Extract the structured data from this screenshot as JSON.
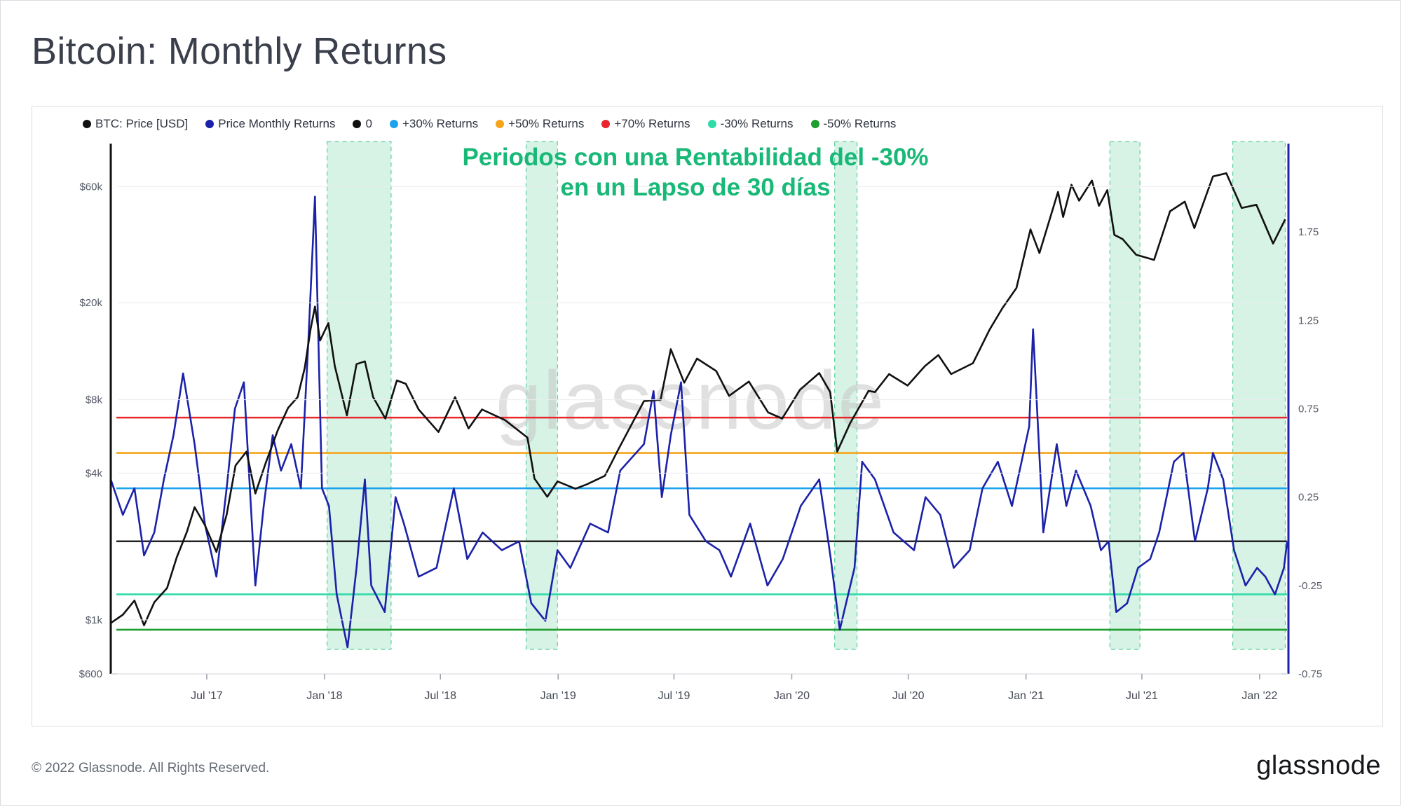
{
  "title": "Bitcoin: Monthly Returns",
  "footer": {
    "copyright": "© 2022 Glassnode. All Rights Reserved.",
    "logo": "glassnode"
  },
  "watermark": "glassnode",
  "annotation": {
    "line1": "Periodos con una Rentabilidad del -30%",
    "line2": "en un Lapso de 30 días",
    "color": "#18b877"
  },
  "legend": [
    {
      "label": "BTC: Price [USD]",
      "color": "#111111"
    },
    {
      "label": "Price Monthly Returns",
      "color": "#1c22a8"
    },
    {
      "label": "0",
      "color": "#111111"
    },
    {
      "label": "+30% Returns",
      "color": "#1ba3ee"
    },
    {
      "label": "+50% Returns",
      "color": "#f4a51b"
    },
    {
      "label": "+70% Returns",
      "color": "#e8262b"
    },
    {
      "label": "-30% Returns",
      "color": "#30dba9"
    },
    {
      "label": "-50% Returns",
      "color": "#1f9d2e"
    }
  ],
  "chart_data": {
    "type": "line",
    "x_tick_labels": [
      "Jul '17",
      "Jan '18",
      "Jul '18",
      "Jan '19",
      "Jul '19",
      "Jan '20",
      "Jul '20",
      "Jan '21",
      "Jul '21",
      "Jan '22"
    ],
    "x_tick_dates": [
      "2017-07-01",
      "2018-01-01",
      "2018-07-01",
      "2019-01-01",
      "2019-07-01",
      "2020-01-01",
      "2020-07-01",
      "2021-01-01",
      "2021-07-01",
      "2022-01-01"
    ],
    "x_range": [
      "2017-02-01",
      "2022-02-15"
    ],
    "y_left": {
      "scale": "log",
      "range": [
        600,
        90000
      ],
      "tick_labels": [
        "$600",
        "$1k",
        "$4k",
        "$8k",
        "$20k",
        "$60k"
      ],
      "tick_values": [
        600,
        1000,
        4000,
        8000,
        20000,
        60000
      ]
    },
    "y_right": {
      "scale": "linear",
      "range": [
        -0.75,
        2.25
      ],
      "tick_labels": [
        "-0.75",
        "-0.25",
        "0.25",
        "0.75",
        "1.25",
        "1.75"
      ],
      "tick_values": [
        -0.75,
        -0.25,
        0.25,
        0.75,
        1.25,
        1.75
      ]
    },
    "reference_lines": [
      {
        "name": "0",
        "value": 0.0,
        "color": "#222222"
      },
      {
        "name": "+30% Returns",
        "value": 0.3,
        "color": "#1ba3ee"
      },
      {
        "name": "+50% Returns",
        "value": 0.5,
        "color": "#f4a51b"
      },
      {
        "name": "+70% Returns",
        "value": 0.7,
        "color": "#e8262b"
      },
      {
        "name": "-30% Returns",
        "value": -0.3,
        "color": "#30dba9"
      },
      {
        "name": "-50% Returns",
        "value": -0.5,
        "color": "#1f9d2e"
      }
    ],
    "highlight_periods": [
      [
        "2018-01-05",
        "2018-04-15"
      ],
      [
        "2018-11-12",
        "2018-12-31"
      ],
      [
        "2020-03-08",
        "2020-04-12"
      ],
      [
        "2021-05-12",
        "2021-06-28"
      ],
      [
        "2021-11-20",
        "2022-02-10"
      ]
    ],
    "series": [
      {
        "name": "BTC: Price [USD]",
        "axis": "left",
        "color": "#111111",
        "points": [
          [
            "2017-02-01",
            970
          ],
          [
            "2017-02-20",
            1050
          ],
          [
            "2017-03-10",
            1200
          ],
          [
            "2017-03-25",
            950
          ],
          [
            "2017-04-10",
            1180
          ],
          [
            "2017-04-30",
            1350
          ],
          [
            "2017-05-15",
            1800
          ],
          [
            "2017-05-31",
            2300
          ],
          [
            "2017-06-12",
            2900
          ],
          [
            "2017-06-28",
            2450
          ],
          [
            "2017-07-16",
            1900
          ],
          [
            "2017-08-01",
            2700
          ],
          [
            "2017-08-15",
            4300
          ],
          [
            "2017-09-01",
            4900
          ],
          [
            "2017-09-15",
            3300
          ],
          [
            "2017-10-01",
            4400
          ],
          [
            "2017-10-20",
            6000
          ],
          [
            "2017-11-05",
            7400
          ],
          [
            "2017-11-20",
            8200
          ],
          [
            "2017-12-01",
            10800
          ],
          [
            "2017-12-10",
            15500
          ],
          [
            "2017-12-17",
            19300
          ],
          [
            "2017-12-25",
            14000
          ],
          [
            "2018-01-07",
            16500
          ],
          [
            "2018-01-17",
            11000
          ],
          [
            "2018-02-05",
            6900
          ],
          [
            "2018-02-20",
            11200
          ],
          [
            "2018-03-05",
            11500
          ],
          [
            "2018-03-18",
            8200
          ],
          [
            "2018-04-06",
            6700
          ],
          [
            "2018-04-24",
            9600
          ],
          [
            "2018-05-08",
            9300
          ],
          [
            "2018-05-28",
            7300
          ],
          [
            "2018-06-28",
            5900
          ],
          [
            "2018-07-24",
            8200
          ],
          [
            "2018-08-14",
            6100
          ],
          [
            "2018-09-04",
            7300
          ],
          [
            "2018-10-10",
            6600
          ],
          [
            "2018-11-14",
            5600
          ],
          [
            "2018-11-25",
            3800
          ],
          [
            "2018-12-15",
            3200
          ],
          [
            "2018-12-31",
            3700
          ],
          [
            "2019-01-28",
            3450
          ],
          [
            "2019-02-15",
            3600
          ],
          [
            "2019-03-15",
            3900
          ],
          [
            "2019-04-05",
            5000
          ],
          [
            "2019-05-15",
            7900
          ],
          [
            "2019-06-10",
            8000
          ],
          [
            "2019-06-26",
            12900
          ],
          [
            "2019-07-17",
            9400
          ],
          [
            "2019-08-06",
            11800
          ],
          [
            "2019-09-05",
            10500
          ],
          [
            "2019-09-25",
            8300
          ],
          [
            "2019-10-26",
            9500
          ],
          [
            "2019-11-25",
            7100
          ],
          [
            "2019-12-17",
            6700
          ],
          [
            "2020-01-14",
            8800
          ],
          [
            "2020-02-13",
            10300
          ],
          [
            "2020-03-01",
            8600
          ],
          [
            "2020-03-12",
            4900
          ],
          [
            "2020-04-01",
            6400
          ],
          [
            "2020-04-30",
            8700
          ],
          [
            "2020-05-10",
            8600
          ],
          [
            "2020-06-01",
            10200
          ],
          [
            "2020-06-30",
            9150
          ],
          [
            "2020-07-27",
            11000
          ],
          [
            "2020-08-17",
            12200
          ],
          [
            "2020-09-06",
            10200
          ],
          [
            "2020-10-10",
            11300
          ],
          [
            "2020-11-05",
            15500
          ],
          [
            "2020-11-25",
            19000
          ],
          [
            "2020-12-17",
            23000
          ],
          [
            "2021-01-08",
            40000
          ],
          [
            "2021-01-22",
            32000
          ],
          [
            "2021-02-20",
            57000
          ],
          [
            "2021-02-28",
            45000
          ],
          [
            "2021-03-13",
            61000
          ],
          [
            "2021-03-25",
            52500
          ],
          [
            "2021-04-14",
            63500
          ],
          [
            "2021-04-25",
            50000
          ],
          [
            "2021-05-08",
            58000
          ],
          [
            "2021-05-19",
            38000
          ],
          [
            "2021-06-01",
            36500
          ],
          [
            "2021-06-22",
            31500
          ],
          [
            "2021-07-20",
            30000
          ],
          [
            "2021-08-14",
            47500
          ],
          [
            "2021-09-06",
            52000
          ],
          [
            "2021-09-21",
            40500
          ],
          [
            "2021-10-20",
            66000
          ],
          [
            "2021-11-10",
            68000
          ],
          [
            "2021-12-04",
            49000
          ],
          [
            "2021-12-27",
            50500
          ],
          [
            "2022-01-22",
            35000
          ],
          [
            "2022-02-10",
            44000
          ]
        ]
      },
      {
        "name": "Price Monthly Returns",
        "axis": "right",
        "color": "#1c22a8",
        "points": [
          [
            "2017-02-01",
            0.35
          ],
          [
            "2017-02-20",
            0.15
          ],
          [
            "2017-03-10",
            0.3
          ],
          [
            "2017-03-25",
            -0.08
          ],
          [
            "2017-04-10",
            0.05
          ],
          [
            "2017-04-25",
            0.35
          ],
          [
            "2017-05-10",
            0.6
          ],
          [
            "2017-05-25",
            0.95
          ],
          [
            "2017-06-12",
            0.55
          ],
          [
            "2017-06-28",
            0.1
          ],
          [
            "2017-07-16",
            -0.2
          ],
          [
            "2017-08-01",
            0.3
          ],
          [
            "2017-08-14",
            0.75
          ],
          [
            "2017-08-28",
            0.9
          ],
          [
            "2017-09-15",
            -0.25
          ],
          [
            "2017-09-28",
            0.2
          ],
          [
            "2017-10-12",
            0.6
          ],
          [
            "2017-10-25",
            0.4
          ],
          [
            "2017-11-10",
            0.55
          ],
          [
            "2017-11-25",
            0.3
          ],
          [
            "2017-12-07",
            1.15
          ],
          [
            "2017-12-17",
            1.95
          ],
          [
            "2017-12-28",
            0.3
          ],
          [
            "2018-01-08",
            0.2
          ],
          [
            "2018-01-20",
            -0.3
          ],
          [
            "2018-02-06",
            -0.6
          ],
          [
            "2018-02-20",
            -0.15
          ],
          [
            "2018-03-05",
            0.35
          ],
          [
            "2018-03-15",
            -0.25
          ],
          [
            "2018-04-05",
            -0.4
          ],
          [
            "2018-04-22",
            0.25
          ],
          [
            "2018-05-05",
            0.1
          ],
          [
            "2018-05-28",
            -0.2
          ],
          [
            "2018-06-25",
            -0.15
          ],
          [
            "2018-07-22",
            0.3
          ],
          [
            "2018-08-12",
            -0.1
          ],
          [
            "2018-09-05",
            0.05
          ],
          [
            "2018-10-05",
            -0.05
          ],
          [
            "2018-11-01",
            0.0
          ],
          [
            "2018-11-20",
            -0.35
          ],
          [
            "2018-12-12",
            -0.45
          ],
          [
            "2018-12-31",
            -0.05
          ],
          [
            "2019-01-20",
            -0.15
          ],
          [
            "2019-02-20",
            0.1
          ],
          [
            "2019-03-20",
            0.05
          ],
          [
            "2019-04-08",
            0.4
          ],
          [
            "2019-05-15",
            0.55
          ],
          [
            "2019-05-30",
            0.85
          ],
          [
            "2019-06-12",
            0.25
          ],
          [
            "2019-06-26",
            0.6
          ],
          [
            "2019-07-12",
            0.9
          ],
          [
            "2019-07-25",
            0.15
          ],
          [
            "2019-08-20",
            0.0
          ],
          [
            "2019-09-10",
            -0.05
          ],
          [
            "2019-09-28",
            -0.2
          ],
          [
            "2019-10-28",
            0.1
          ],
          [
            "2019-11-24",
            -0.25
          ],
          [
            "2019-12-18",
            -0.1
          ],
          [
            "2020-01-15",
            0.2
          ],
          [
            "2020-02-13",
            0.35
          ],
          [
            "2020-03-02",
            -0.1
          ],
          [
            "2020-03-16",
            -0.5
          ],
          [
            "2020-04-08",
            -0.15
          ],
          [
            "2020-04-20",
            0.45
          ],
          [
            "2020-05-10",
            0.35
          ],
          [
            "2020-06-08",
            0.05
          ],
          [
            "2020-07-10",
            -0.05
          ],
          [
            "2020-07-28",
            0.25
          ],
          [
            "2020-08-20",
            0.15
          ],
          [
            "2020-09-10",
            -0.15
          ],
          [
            "2020-10-05",
            -0.05
          ],
          [
            "2020-10-25",
            0.3
          ],
          [
            "2020-11-18",
            0.45
          ],
          [
            "2020-12-10",
            0.2
          ],
          [
            "2021-01-06",
            0.65
          ],
          [
            "2021-01-12",
            1.2
          ],
          [
            "2021-01-28",
            0.05
          ],
          [
            "2021-02-18",
            0.55
          ],
          [
            "2021-03-05",
            0.2
          ],
          [
            "2021-03-20",
            0.4
          ],
          [
            "2021-04-12",
            0.2
          ],
          [
            "2021-04-28",
            -0.05
          ],
          [
            "2021-05-10",
            0.0
          ],
          [
            "2021-05-22",
            -0.4
          ],
          [
            "2021-06-08",
            -0.35
          ],
          [
            "2021-06-25",
            -0.15
          ],
          [
            "2021-07-14",
            -0.1
          ],
          [
            "2021-07-28",
            0.05
          ],
          [
            "2021-08-20",
            0.45
          ],
          [
            "2021-09-04",
            0.5
          ],
          [
            "2021-09-22",
            0.0
          ],
          [
            "2021-10-12",
            0.3
          ],
          [
            "2021-10-20",
            0.5
          ],
          [
            "2021-11-05",
            0.35
          ],
          [
            "2021-11-22",
            -0.05
          ],
          [
            "2021-12-10",
            -0.25
          ],
          [
            "2021-12-28",
            -0.15
          ],
          [
            "2022-01-10",
            -0.2
          ],
          [
            "2022-01-25",
            -0.3
          ],
          [
            "2022-02-08",
            -0.15
          ],
          [
            "2022-02-13",
            0.0
          ]
        ]
      }
    ]
  }
}
